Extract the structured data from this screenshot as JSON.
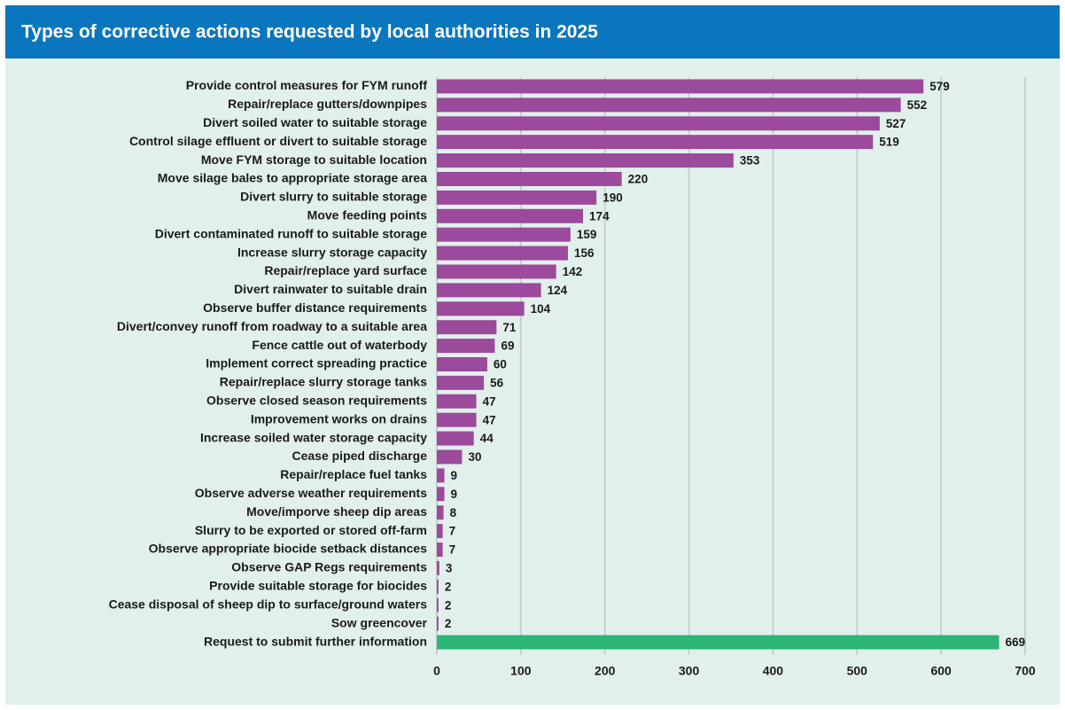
{
  "chart_data": {
    "type": "barh",
    "title": "Types of corrective actions requested by local authorities in 2025",
    "categories": [
      "Provide control measures for FYM runoff",
      "Repair/replace gutters/downpipes",
      "Divert soiled water to suitable storage",
      "Control silage effluent or divert to suitable storage",
      "Move FYM storage to suitable location",
      "Move silage bales to appropriate storage area",
      "Divert slurry to suitable storage",
      "Move feeding points",
      "Divert contaminated runoff to suitable storage",
      "Increase slurry storage capacity",
      "Repair/replace yard surface",
      "Divert rainwater to suitable drain",
      "Observe buffer distance requirements",
      "Divert/convey runoff from roadway to a suitable area",
      "Fence cattle out of waterbody",
      "Implement correct spreading practice",
      "Repair/replace slurry storage tanks",
      "Observe closed season requirements",
      "Improvement works on drains",
      "Increase soiled water storage capacity",
      "Cease piped discharge",
      "Repair/replace fuel tanks",
      "Observe adverse weather requirements",
      "Move/imporve sheep dip areas",
      "Slurry to be exported or stored off-farm",
      "Observe appropriate biocide setback distances",
      "Observe GAP Regs requirements",
      "Provide suitable storage for biocides",
      "Cease disposal of sheep dip to surface/ground waters",
      "Sow greencover",
      "Request to submit further information"
    ],
    "values": [
      579,
      552,
      527,
      519,
      353,
      220,
      190,
      174,
      159,
      156,
      142,
      124,
      104,
      71,
      69,
      60,
      56,
      47,
      47,
      44,
      30,
      9,
      9,
      8,
      7,
      7,
      3,
      2,
      2,
      2,
      669
    ],
    "colors": [
      "#9b4a9c",
      "#9b4a9c",
      "#9b4a9c",
      "#9b4a9c",
      "#9b4a9c",
      "#9b4a9c",
      "#9b4a9c",
      "#9b4a9c",
      "#9b4a9c",
      "#9b4a9c",
      "#9b4a9c",
      "#9b4a9c",
      "#9b4a9c",
      "#9b4a9c",
      "#9b4a9c",
      "#9b4a9c",
      "#9b4a9c",
      "#9b4a9c",
      "#9b4a9c",
      "#9b4a9c",
      "#9b4a9c",
      "#9b4a9c",
      "#9b4a9c",
      "#9b4a9c",
      "#9b4a9c",
      "#9b4a9c",
      "#9b4a9c",
      "#9b4a9c",
      "#9b4a9c",
      "#9b4a9c",
      "#2bb673"
    ],
    "xlim": [
      0,
      700
    ],
    "xticks": [
      0,
      100,
      200,
      300,
      400,
      500,
      600,
      700
    ],
    "grid": true
  }
}
